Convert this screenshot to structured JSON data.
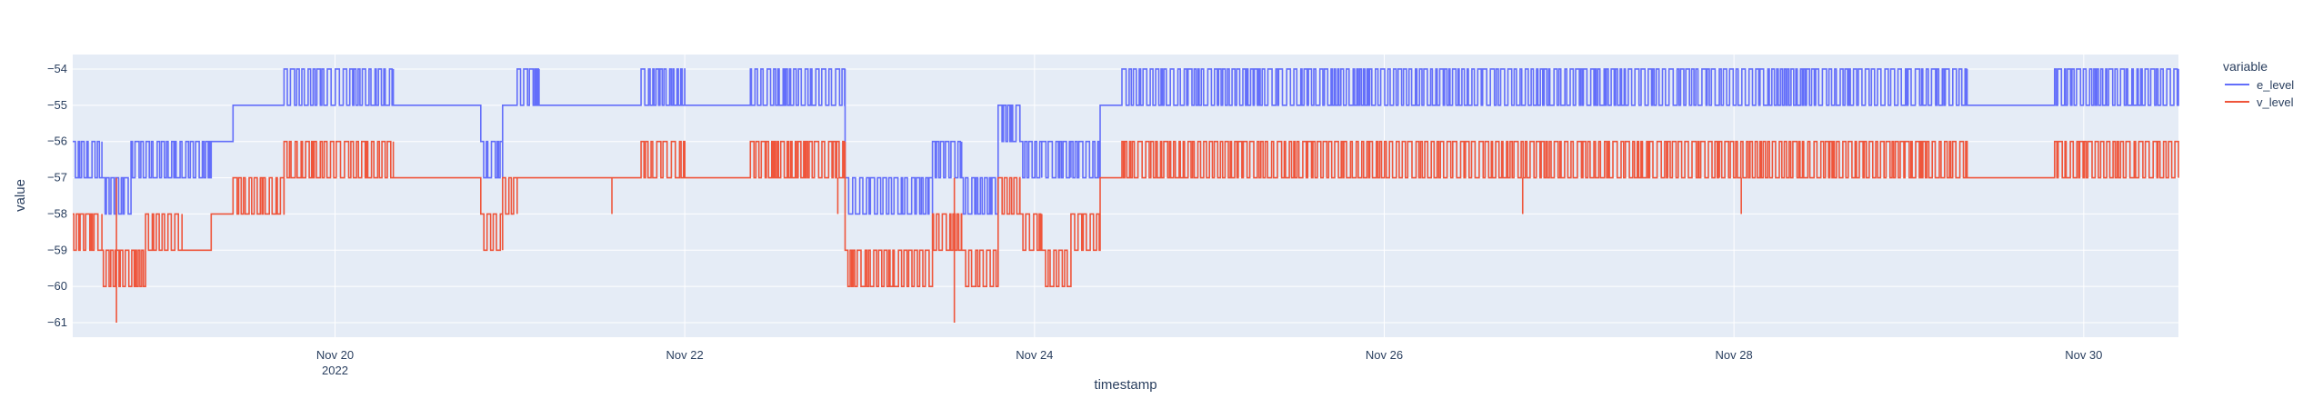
{
  "chart_data": {
    "type": "line",
    "xlabel": "timestamp",
    "ylabel": "value",
    "x_domain": [
      "2022-11-18 12:00",
      "2022-11-30 13:00"
    ],
    "y_domain": [
      -61.4,
      -53.6
    ],
    "xticks": [
      {
        "date": "2022-11-20",
        "label": "Nov 20",
        "sublabel": "2022"
      },
      {
        "date": "2022-11-22",
        "label": "Nov 22",
        "sublabel": ""
      },
      {
        "date": "2022-11-24",
        "label": "Nov 24",
        "sublabel": ""
      },
      {
        "date": "2022-11-26",
        "label": "Nov 26",
        "sublabel": ""
      },
      {
        "date": "2022-11-28",
        "label": "Nov 28",
        "sublabel": ""
      },
      {
        "date": "2022-11-30",
        "label": "Nov 30",
        "sublabel": ""
      }
    ],
    "yticks": [
      {
        "value": -54,
        "label": "−54"
      },
      {
        "value": -55,
        "label": "−55"
      },
      {
        "value": -56,
        "label": "−56"
      },
      {
        "value": -57,
        "label": "−57"
      },
      {
        "value": -58,
        "label": "−58"
      },
      {
        "value": -59,
        "label": "−59"
      },
      {
        "value": -60,
        "label": "−60"
      },
      {
        "value": -61,
        "label": "−61"
      }
    ],
    "grid": true,
    "legend": {
      "title": "variable",
      "placement": "right"
    },
    "series": [
      {
        "name": "e_level",
        "color": "#636efa",
        "segments": [
          {
            "start": "2022-11-18 12:00",
            "end": "2022-11-18 16:00",
            "levels": [
              -56,
              -57
            ]
          },
          {
            "start": "2022-11-18 16:00",
            "end": "2022-11-18 20:00",
            "levels": [
              -57,
              -58
            ]
          },
          {
            "start": "2022-11-18 20:00",
            "end": "2022-11-19 02:00",
            "levels": [
              -56,
              -57
            ]
          },
          {
            "start": "2022-11-19 02:00",
            "end": "2022-11-19 07:00",
            "levels": [
              -56,
              -57
            ]
          },
          {
            "start": "2022-11-19 07:00",
            "end": "2022-11-19 10:00",
            "levels": [
              -56
            ]
          },
          {
            "start": "2022-11-19 10:00",
            "end": "2022-11-19 17:00",
            "levels": [
              -55
            ]
          },
          {
            "start": "2022-11-19 17:00",
            "end": "2022-11-20 08:00",
            "levels": [
              -54,
              -55
            ]
          },
          {
            "start": "2022-11-20 08:00",
            "end": "2022-11-20 20:00",
            "levels": [
              -55
            ]
          },
          {
            "start": "2022-11-20 20:00",
            "end": "2022-11-20 23:00",
            "levels": [
              -56,
              -57
            ]
          },
          {
            "start": "2022-11-20 23:00",
            "end": "2022-11-21 01:00",
            "levels": [
              -55
            ]
          },
          {
            "start": "2022-11-21 01:00",
            "end": "2022-11-21 04:00",
            "levels": [
              -54,
              -55
            ]
          },
          {
            "start": "2022-11-21 04:00",
            "end": "2022-11-21 18:00",
            "levels": [
              -55
            ]
          },
          {
            "start": "2022-11-21 18:00",
            "end": "2022-11-22 00:00",
            "levels": [
              -54,
              -55
            ]
          },
          {
            "start": "2022-11-22 00:00",
            "end": "2022-11-22 09:00",
            "levels": [
              -55
            ]
          },
          {
            "start": "2022-11-22 09:00",
            "end": "2022-11-22 22:00",
            "levels": [
              -54,
              -55
            ]
          },
          {
            "start": "2022-11-22 22:00",
            "end": "2022-11-23 04:00",
            "levels": [
              -57,
              -58
            ]
          },
          {
            "start": "2022-11-23 04:00",
            "end": "2022-11-23 10:00",
            "levels": [
              -57,
              -58
            ]
          },
          {
            "start": "2022-11-23 10:00",
            "end": "2022-11-23 14:00",
            "levels": [
              -56,
              -57
            ]
          },
          {
            "start": "2022-11-23 14:00",
            "end": "2022-11-23 19:00",
            "levels": [
              -57,
              -58
            ]
          },
          {
            "start": "2022-11-23 19:00",
            "end": "2022-11-23 22:00",
            "levels": [
              -55,
              -56
            ]
          },
          {
            "start": "2022-11-23 22:00",
            "end": "2022-11-24 01:00",
            "levels": [
              -56,
              -57
            ]
          },
          {
            "start": "2022-11-24 01:00",
            "end": "2022-11-24 05:00",
            "levels": [
              -56,
              -57
            ]
          },
          {
            "start": "2022-11-24 05:00",
            "end": "2022-11-24 09:00",
            "levels": [
              -56,
              -57
            ]
          },
          {
            "start": "2022-11-24 09:00",
            "end": "2022-11-24 12:00",
            "levels": [
              -55
            ]
          },
          {
            "start": "2022-11-24 12:00",
            "end": "2022-11-25 22:00",
            "levels": [
              -54,
              -55
            ]
          },
          {
            "start": "2022-11-25 22:00",
            "end": "2022-11-27 22:00",
            "levels": [
              -54,
              -55
            ]
          },
          {
            "start": "2022-11-27 22:00",
            "end": "2022-11-29 08:00",
            "levels": [
              -54,
              -55
            ]
          },
          {
            "start": "2022-11-29 08:00",
            "end": "2022-11-29 20:00",
            "levels": [
              -55
            ]
          },
          {
            "start": "2022-11-29 20:00",
            "end": "2022-11-30 13:00",
            "levels": [
              -54,
              -55
            ]
          }
        ]
      },
      {
        "name": "v_level",
        "color": "#ef553b",
        "segments": [
          {
            "start": "2022-11-18 12:00",
            "end": "2022-11-18 16:00",
            "levels": [
              -58,
              -59
            ]
          },
          {
            "start": "2022-11-18 16:00",
            "end": "2022-11-18 22:00",
            "levels": [
              -59,
              -60
            ]
          },
          {
            "start": "2022-11-18 22:00",
            "end": "2022-11-19 03:00",
            "levels": [
              -58,
              -59
            ]
          },
          {
            "start": "2022-11-19 03:00",
            "end": "2022-11-19 07:00",
            "levels": [
              -59
            ]
          },
          {
            "start": "2022-11-19 07:00",
            "end": "2022-11-19 10:00",
            "levels": [
              -58
            ]
          },
          {
            "start": "2022-11-19 10:00",
            "end": "2022-11-19 17:00",
            "levels": [
              -57,
              -58
            ]
          },
          {
            "start": "2022-11-19 17:00",
            "end": "2022-11-20 08:00",
            "levels": [
              -56,
              -57
            ]
          },
          {
            "start": "2022-11-20 08:00",
            "end": "2022-11-20 20:00",
            "levels": [
              -57
            ]
          },
          {
            "start": "2022-11-20 20:00",
            "end": "2022-11-20 23:00",
            "levels": [
              -58,
              -59
            ]
          },
          {
            "start": "2022-11-20 23:00",
            "end": "2022-11-21 01:00",
            "levels": [
              -57,
              -58
            ]
          },
          {
            "start": "2022-11-21 01:00",
            "end": "2022-11-21 04:00",
            "levels": [
              -57
            ]
          },
          {
            "start": "2022-11-21 04:00",
            "end": "2022-11-21 18:00",
            "levels": [
              -57
            ]
          },
          {
            "start": "2022-11-21 18:00",
            "end": "2022-11-22 00:00",
            "levels": [
              -56,
              -57
            ]
          },
          {
            "start": "2022-11-22 00:00",
            "end": "2022-11-22 09:00",
            "levels": [
              -57
            ]
          },
          {
            "start": "2022-11-22 09:00",
            "end": "2022-11-22 22:00",
            "levels": [
              -56,
              -57
            ]
          },
          {
            "start": "2022-11-22 22:00",
            "end": "2022-11-23 04:00",
            "levels": [
              -59,
              -60
            ]
          },
          {
            "start": "2022-11-23 04:00",
            "end": "2022-11-23 10:00",
            "levels": [
              -59,
              -60
            ]
          },
          {
            "start": "2022-11-23 10:00",
            "end": "2022-11-23 14:00",
            "levels": [
              -58,
              -59
            ]
          },
          {
            "start": "2022-11-23 14:00",
            "end": "2022-11-23 19:00",
            "levels": [
              -59,
              -60
            ]
          },
          {
            "start": "2022-11-23 19:00",
            "end": "2022-11-23 22:00",
            "levels": [
              -57,
              -58
            ]
          },
          {
            "start": "2022-11-23 22:00",
            "end": "2022-11-24 01:00",
            "levels": [
              -58,
              -59
            ]
          },
          {
            "start": "2022-11-24 01:00",
            "end": "2022-11-24 05:00",
            "levels": [
              -59,
              -60
            ]
          },
          {
            "start": "2022-11-24 05:00",
            "end": "2022-11-24 09:00",
            "levels": [
              -58,
              -59
            ]
          },
          {
            "start": "2022-11-24 09:00",
            "end": "2022-11-24 12:00",
            "levels": [
              -57
            ]
          },
          {
            "start": "2022-11-24 12:00",
            "end": "2022-11-25 22:00",
            "levels": [
              -56,
              -57
            ]
          },
          {
            "start": "2022-11-25 22:00",
            "end": "2022-11-27 22:00",
            "levels": [
              -56,
              -57
            ]
          },
          {
            "start": "2022-11-27 22:00",
            "end": "2022-11-29 08:00",
            "levels": [
              -56,
              -57
            ]
          },
          {
            "start": "2022-11-29 08:00",
            "end": "2022-11-29 20:00",
            "levels": [
              -57
            ]
          },
          {
            "start": "2022-11-29 20:00",
            "end": "2022-11-30 13:00",
            "levels": [
              -56,
              -57
            ]
          }
        ],
        "spikes": [
          {
            "t": "2022-11-18 18:00",
            "value": -61
          },
          {
            "t": "2022-11-21 14:00",
            "value": -58
          },
          {
            "t": "2022-11-22 21:00",
            "value": -58
          },
          {
            "t": "2022-11-23 13:00",
            "value": -61
          },
          {
            "t": "2022-11-26 19:00",
            "value": -58
          },
          {
            "t": "2022-11-28 01:00",
            "value": -58
          }
        ]
      }
    ]
  }
}
